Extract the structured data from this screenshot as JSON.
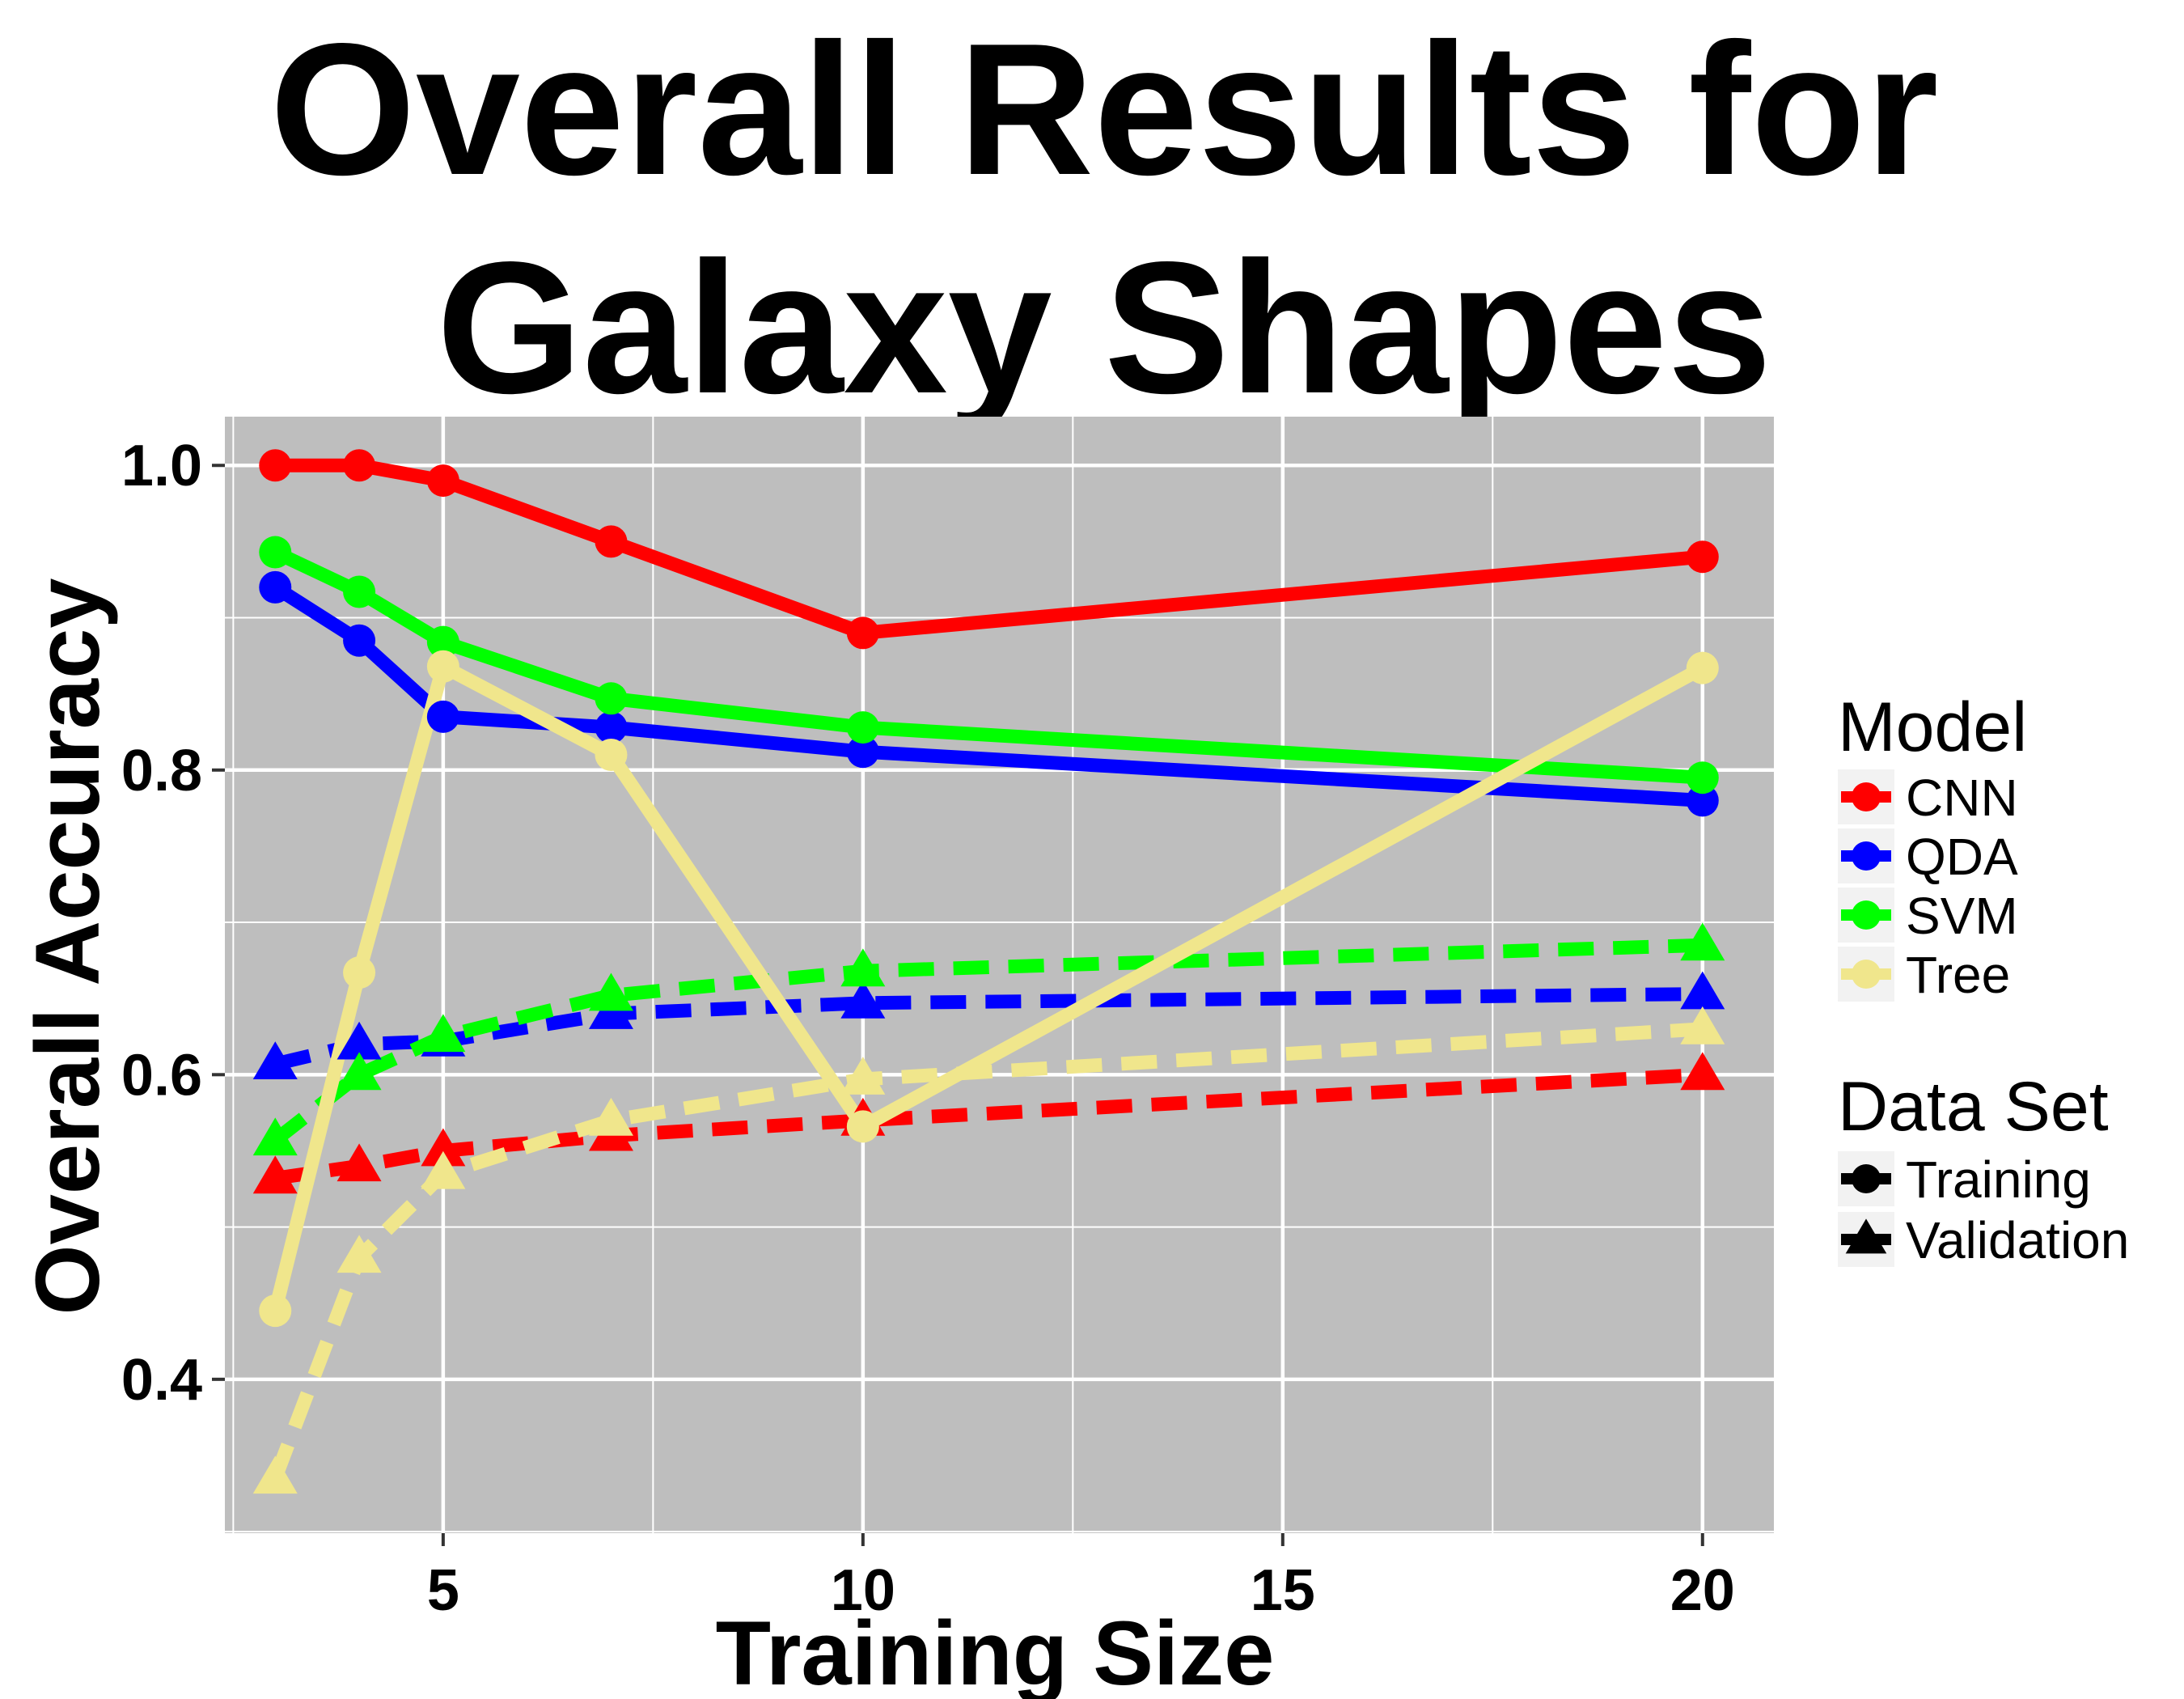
{
  "chart_data": {
    "type": "line",
    "title_lines": [
      "Overall Results for",
      "Galaxy Shapes"
    ],
    "xlabel": "Training Size",
    "ylabel": "Overall Accuracy",
    "x": [
      3,
      4,
      5,
      7,
      10,
      20
    ],
    "xlim": [
      2.4,
      20.85
    ],
    "ylim": [
      0.299,
      1.032
    ],
    "xticks": [
      5,
      10,
      15,
      20
    ],
    "xtick_labels": [
      "5",
      "10",
      "15",
      "20"
    ],
    "yticks": [
      0.4,
      0.6,
      0.8,
      1.0
    ],
    "ytick_labels": [
      "0.4",
      "0.6",
      "0.8",
      "1.0"
    ],
    "x_minor": [
      2.5,
      7.5,
      12.5,
      17.5
    ],
    "y_minor": [
      0.3,
      0.5,
      0.7,
      0.9
    ],
    "grid": true,
    "legend_position": "right",
    "colors": {
      "panel": "#BEBEBE",
      "grid": "#FFFFFF",
      "CNN": "#FF0000",
      "QDA": "#0000FF",
      "SVM": "#00FF00",
      "Tree": "#F0E68C"
    },
    "legend": {
      "model_title": "Model",
      "models": [
        "CNN",
        "QDA",
        "SVM",
        "Tree"
      ],
      "dataset_title": "Data Set",
      "datasets": [
        "Training",
        "Validation"
      ]
    },
    "series": [
      {
        "name": "CNN",
        "dataset": "Training",
        "values": [
          1.0,
          1.0,
          0.99,
          0.95,
          0.89,
          0.94
        ]
      },
      {
        "name": "QDA",
        "dataset": "Training",
        "values": [
          0.92,
          0.885,
          0.835,
          0.828,
          0.812,
          0.78
        ]
      },
      {
        "name": "SVM",
        "dataset": "Training",
        "values": [
          0.943,
          0.917,
          0.884,
          0.847,
          0.828,
          0.795
        ]
      },
      {
        "name": "Tree",
        "dataset": "Training",
        "values": [
          0.445,
          0.667,
          0.868,
          0.81,
          0.566,
          0.867
        ]
      },
      {
        "name": "CNN",
        "dataset": "Validation",
        "values": [
          0.532,
          0.54,
          0.55,
          0.56,
          0.57,
          0.6
        ]
      },
      {
        "name": "QDA",
        "dataset": "Validation",
        "values": [
          0.607,
          0.62,
          0.622,
          0.64,
          0.647,
          0.653
        ]
      },
      {
        "name": "SVM",
        "dataset": "Validation",
        "values": [
          0.557,
          0.6,
          0.625,
          0.652,
          0.668,
          0.685
        ]
      },
      {
        "name": "Tree",
        "dataset": "Validation",
        "values": [
          0.335,
          0.48,
          0.535,
          0.57,
          0.597,
          0.63
        ]
      }
    ]
  }
}
